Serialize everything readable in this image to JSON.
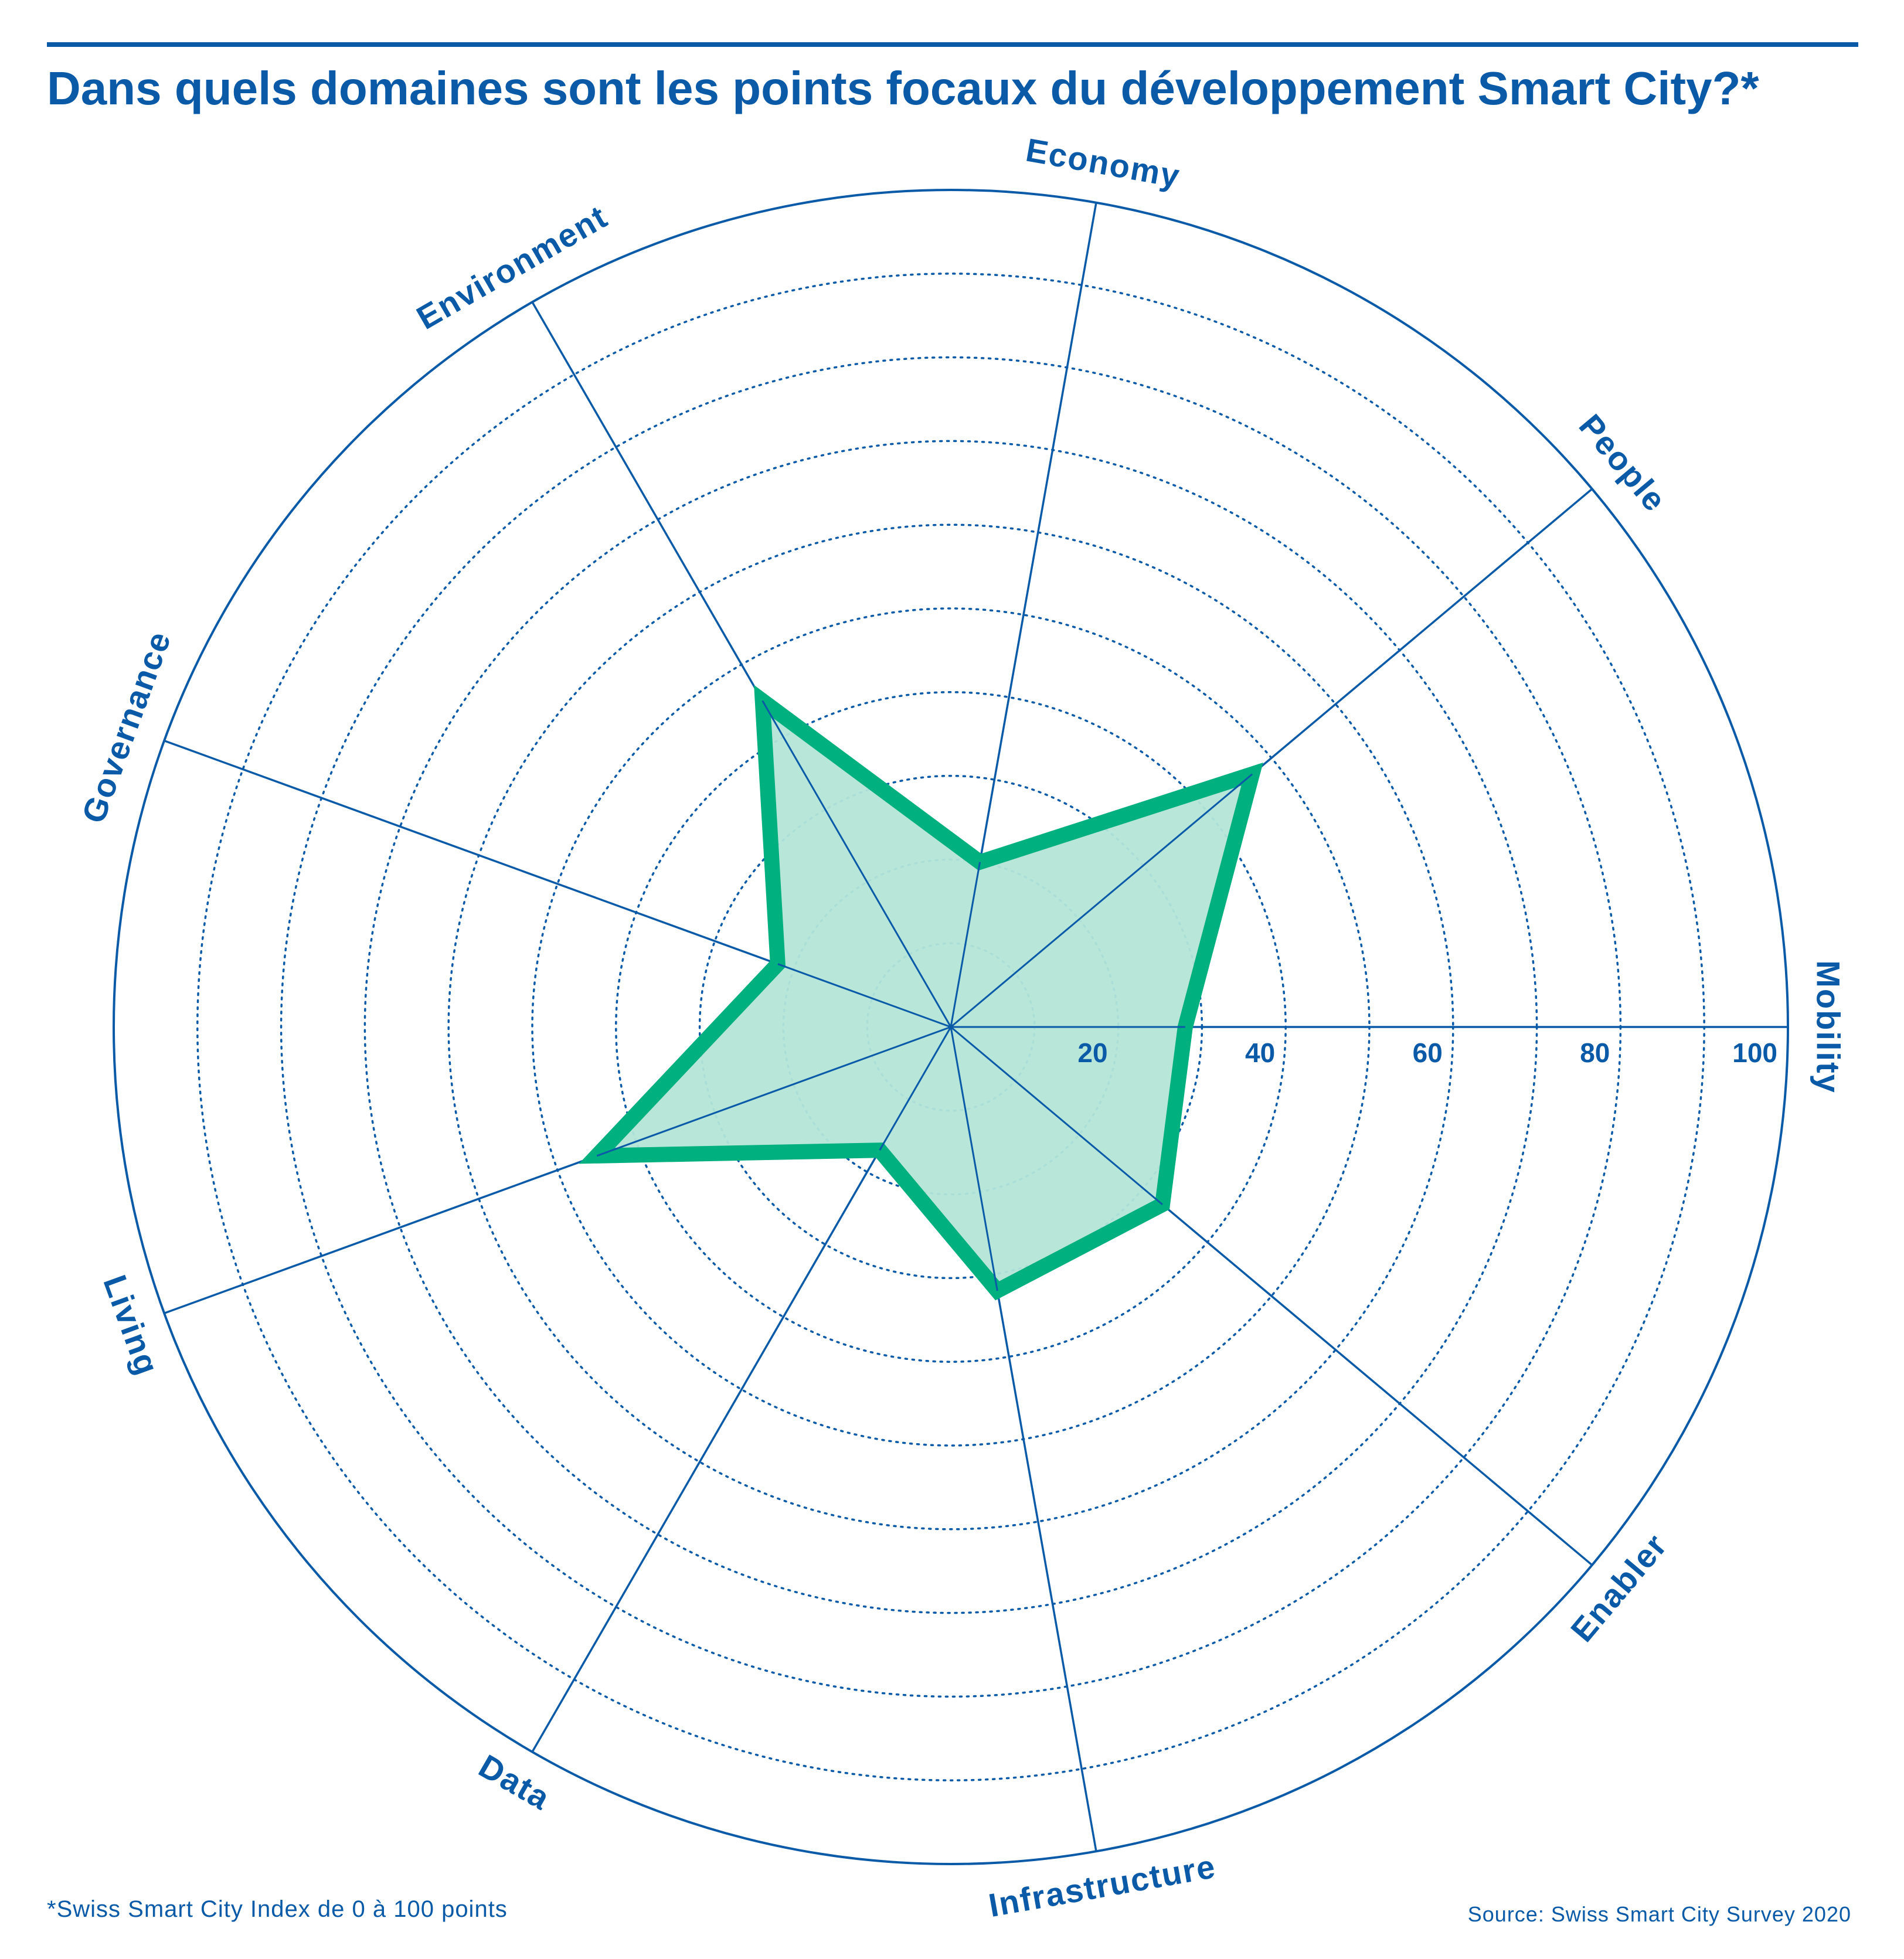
{
  "title": "Dans quels domaines sont les points focaux du développement Smart City?*",
  "footnote": "*Swiss Smart City Index de 0 à 100 points",
  "source": "Source: Swiss Smart City Survey 2020",
  "colors": {
    "accent": "#0a5aa8",
    "series_line": "#00b07f",
    "series_fill": "#b4e6d8"
  },
  "chart_data": {
    "type": "radar",
    "title": "Dans quels domaines sont les points focaux du développement Smart City?*",
    "categories": [
      "Mobility",
      "People",
      "Economy",
      "Environment",
      "Governance",
      "Living",
      "Data",
      "Infrastructure",
      "Enabler"
    ],
    "category_angles_deg": [
      0,
      40,
      80,
      120,
      160,
      200,
      240,
      280,
      320
    ],
    "series": [
      {
        "values": [
          28,
          47,
          20,
          45,
          22,
          45,
          17,
          32,
          33
        ]
      }
    ],
    "rlim": [
      0,
      100
    ],
    "rings": [
      10,
      20,
      30,
      40,
      50,
      60,
      70,
      80,
      90,
      100
    ],
    "tick_labels": [
      "20",
      "40",
      "60",
      "80",
      "100"
    ],
    "tick_values": [
      20,
      40,
      60,
      80,
      100
    ],
    "grid": "dotted"
  }
}
